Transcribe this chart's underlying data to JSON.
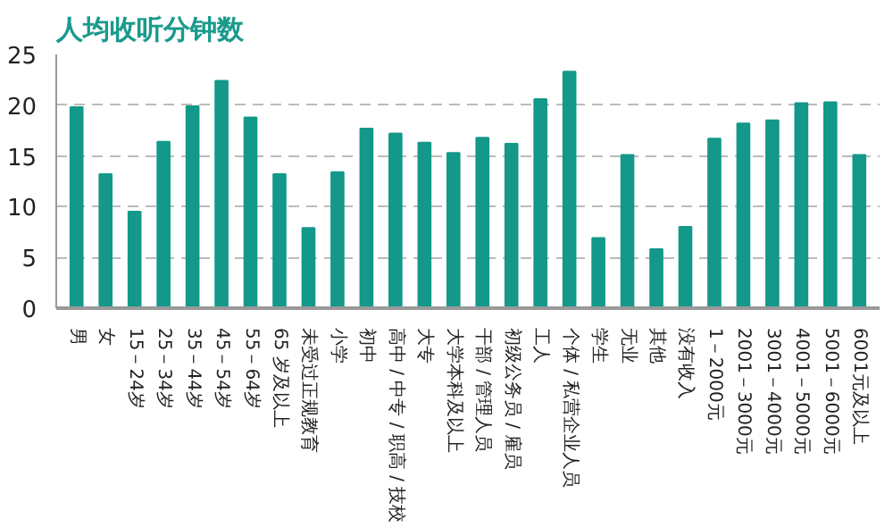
{
  "chart_data": {
    "type": "bar",
    "title": "人均收听分钟数",
    "categories": [
      "男",
      "女",
      "15－24岁",
      "25－34岁",
      "35－44岁",
      "45－54岁",
      "55－64岁",
      "65 岁及以上",
      "未受过正规教育",
      "小学",
      "初中",
      "高中 / 中专 / 职高 / 技校",
      "大专",
      "大学本科及以上",
      "干部 / 管理人员",
      "初级公务员 / 雇员",
      "工人",
      "个体 / 私营企业人员",
      "学生",
      "无业",
      "其他",
      "没有收入",
      "1－2000元",
      "2001－3000元",
      "3001－4000元",
      "4001－5000元",
      "5001－6000元",
      "6001元及以上"
    ],
    "values": [
      19.8,
      13.2,
      9.5,
      16.4,
      19.9,
      22.4,
      18.8,
      13.2,
      7.9,
      13.4,
      17.7,
      17.2,
      16.3,
      15.3,
      16.8,
      16.2,
      20.6,
      23.3,
      6.9,
      15.1,
      5.8,
      8.0,
      16.7,
      18.2,
      18.5,
      20.2,
      20.3,
      15.1
    ],
    "color": "#13988a",
    "ylim": [
      0,
      25
    ],
    "yticks": [
      0,
      5,
      10,
      15,
      20,
      25
    ],
    "grid": "y"
  }
}
